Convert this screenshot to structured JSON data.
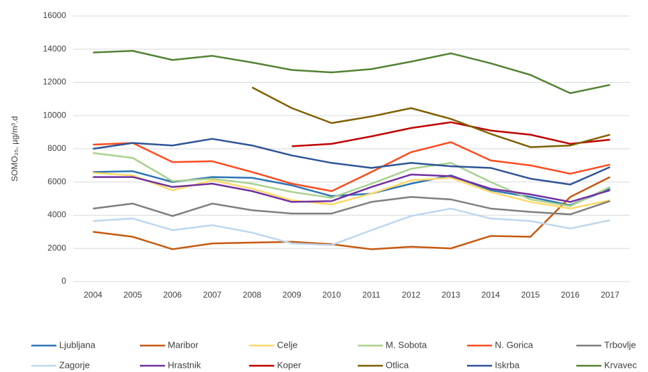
{
  "chart_data": {
    "type": "line",
    "y_label": "SOMO₃₅, µg/m³.d",
    "categories": [
      "2004",
      "2005",
      "2006",
      "2007",
      "2008",
      "2009",
      "2010",
      "2011",
      "2012",
      "2013",
      "2014",
      "2015",
      "2016",
      "2017"
    ],
    "ylim": [
      0,
      16000
    ],
    "yticks": [
      0,
      2000,
      4000,
      6000,
      8000,
      10000,
      12000,
      14000,
      16000
    ],
    "grid": true,
    "legend": "bottom",
    "series": [
      {
        "name": "Ljubljana",
        "color": "#2e75b6",
        "values": [
          6600,
          6650,
          6000,
          6300,
          6250,
          5800,
          5150,
          5300,
          5900,
          6400,
          5500,
          5100,
          4600,
          5600
        ]
      },
      {
        "name": "Maribor",
        "color": "#c55a11",
        "values": [
          3000,
          2700,
          1950,
          2300,
          2350,
          2400,
          2250,
          1950,
          2100,
          2000,
          2750,
          2700,
          5100,
          6300
        ]
      },
      {
        "name": "Celje",
        "color": "#ffd966",
        "values": [
          6550,
          6400,
          5500,
          6100,
          5600,
          4900,
          4650,
          5300,
          6100,
          6250,
          5400,
          4800,
          4400,
          4900
        ]
      },
      {
        "name": "M. Sobota",
        "color": "#a9d18e",
        "values": [
          7750,
          7450,
          6050,
          6200,
          5900,
          5400,
          5050,
          5900,
          6800,
          7150,
          6000,
          4950,
          4550,
          5700
        ]
      },
      {
        "name": "N. Gorica",
        "color": "#ff4b1f",
        "values": [
          8250,
          8350,
          7200,
          7250,
          6600,
          5900,
          5450,
          6600,
          7800,
          8400,
          7300,
          7000,
          6500,
          7050
        ]
      },
      {
        "name": "Trbovlje",
        "color": "#7f7f7f",
        "values": [
          4400,
          4700,
          3950,
          4700,
          4300,
          4100,
          4100,
          4800,
          5100,
          4950,
          4400,
          4200,
          4050,
          4850
        ]
      },
      {
        "name": "Zagorje",
        "color": "#bdd7ee",
        "values": [
          3650,
          3800,
          3100,
          3400,
          2950,
          2300,
          2200,
          3100,
          3950,
          4400,
          3800,
          3650,
          3200,
          3700
        ]
      },
      {
        "name": "Hrastnik",
        "color": "#7030a0",
        "values": [
          6300,
          6300,
          5700,
          5900,
          5450,
          4800,
          4850,
          5700,
          6450,
          6350,
          5600,
          5250,
          4800,
          5500
        ]
      },
      {
        "name": "Koper",
        "color": "#c00000",
        "values": [
          null,
          null,
          null,
          null,
          null,
          8150,
          8300,
          8750,
          9250,
          9600,
          9100,
          8850,
          8300,
          8550
        ]
      },
      {
        "name": "Otlica",
        "color": "#7f6000",
        "values": [
          null,
          null,
          null,
          null,
          11700,
          10450,
          9550,
          9950,
          10450,
          9800,
          8900,
          8100,
          8200,
          8850
        ]
      },
      {
        "name": "Iskrba",
        "color": "#2f5597",
        "values": [
          8000,
          8350,
          8200,
          8600,
          8200,
          7600,
          7150,
          6850,
          7150,
          6950,
          6850,
          6200,
          5850,
          6900
        ]
      },
      {
        "name": "Krvavec",
        "color": "#548235",
        "values": [
          13800,
          13900,
          13350,
          13600,
          13200,
          12750,
          12600,
          12800,
          13250,
          13750,
          13150,
          12450,
          11350,
          11850
        ]
      }
    ]
  }
}
